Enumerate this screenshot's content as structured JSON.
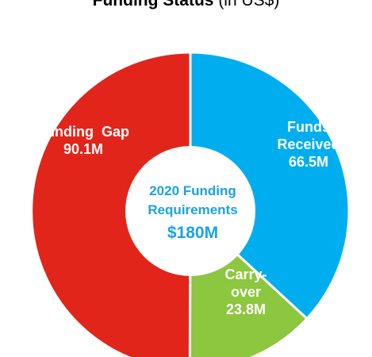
{
  "chart_data": {
    "type": "pie",
    "title": "Funding Status",
    "subtitle": "(in US$)",
    "center_label": "2020 Funding Requirements",
    "center_label_lines": [
      "2020 Funding",
      "Requirements"
    ],
    "center_value": "$180M",
    "total": 180.4,
    "slices": [
      {
        "name": "Funds Received",
        "label_lines": [
          "Funds",
          "Received"
        ],
        "value": 66.5,
        "value_label": "66.5M",
        "color": "#00aeef"
      },
      {
        "name": "Carry-over",
        "label_lines": [
          "Carry-",
          "over"
        ],
        "value": 23.8,
        "value_label": "23.8M",
        "color": "#8dc63f"
      },
      {
        "name": "Funding Gap",
        "label_lines": [
          "Funding  Gap"
        ],
        "value": 90.1,
        "value_label": "90.1M",
        "color": "#e1251b"
      }
    ],
    "legend": "none"
  }
}
